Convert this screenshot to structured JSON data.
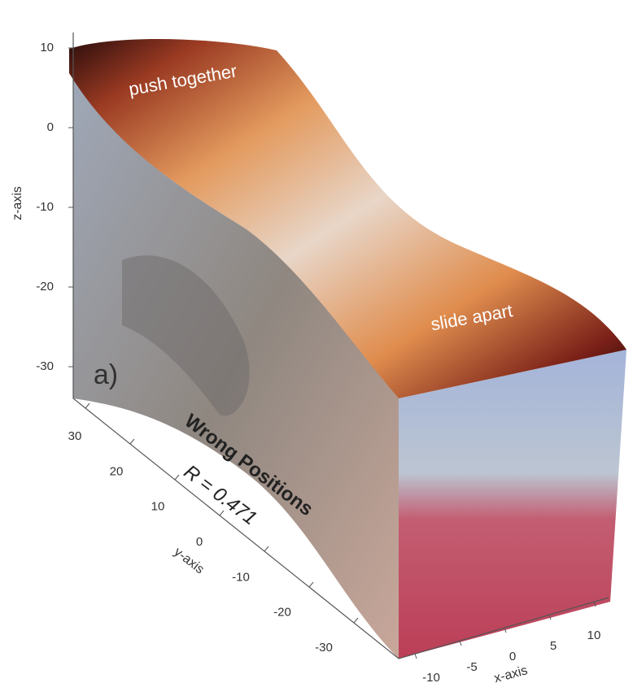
{
  "chart_data": {
    "type": "surface3d",
    "panel_label": "a)",
    "title": "Wrong Positions",
    "subtitle": "R = 0.471",
    "annotations": [
      "push together",
      "slide apart"
    ],
    "xlabel": "x-axis",
    "ylabel": "y-axis",
    "zlabel": "z-axis",
    "xlim": [
      -10,
      10
    ],
    "xticks": [
      -10,
      -5,
      0,
      5,
      10
    ],
    "ylim": [
      30,
      -30
    ],
    "yticks": [
      30,
      20,
      10,
      0,
      -10,
      -20,
      -30
    ],
    "zlim": [
      -30,
      10
    ],
    "zticks": [
      10,
      0,
      -10,
      -20,
      -30
    ]
  }
}
